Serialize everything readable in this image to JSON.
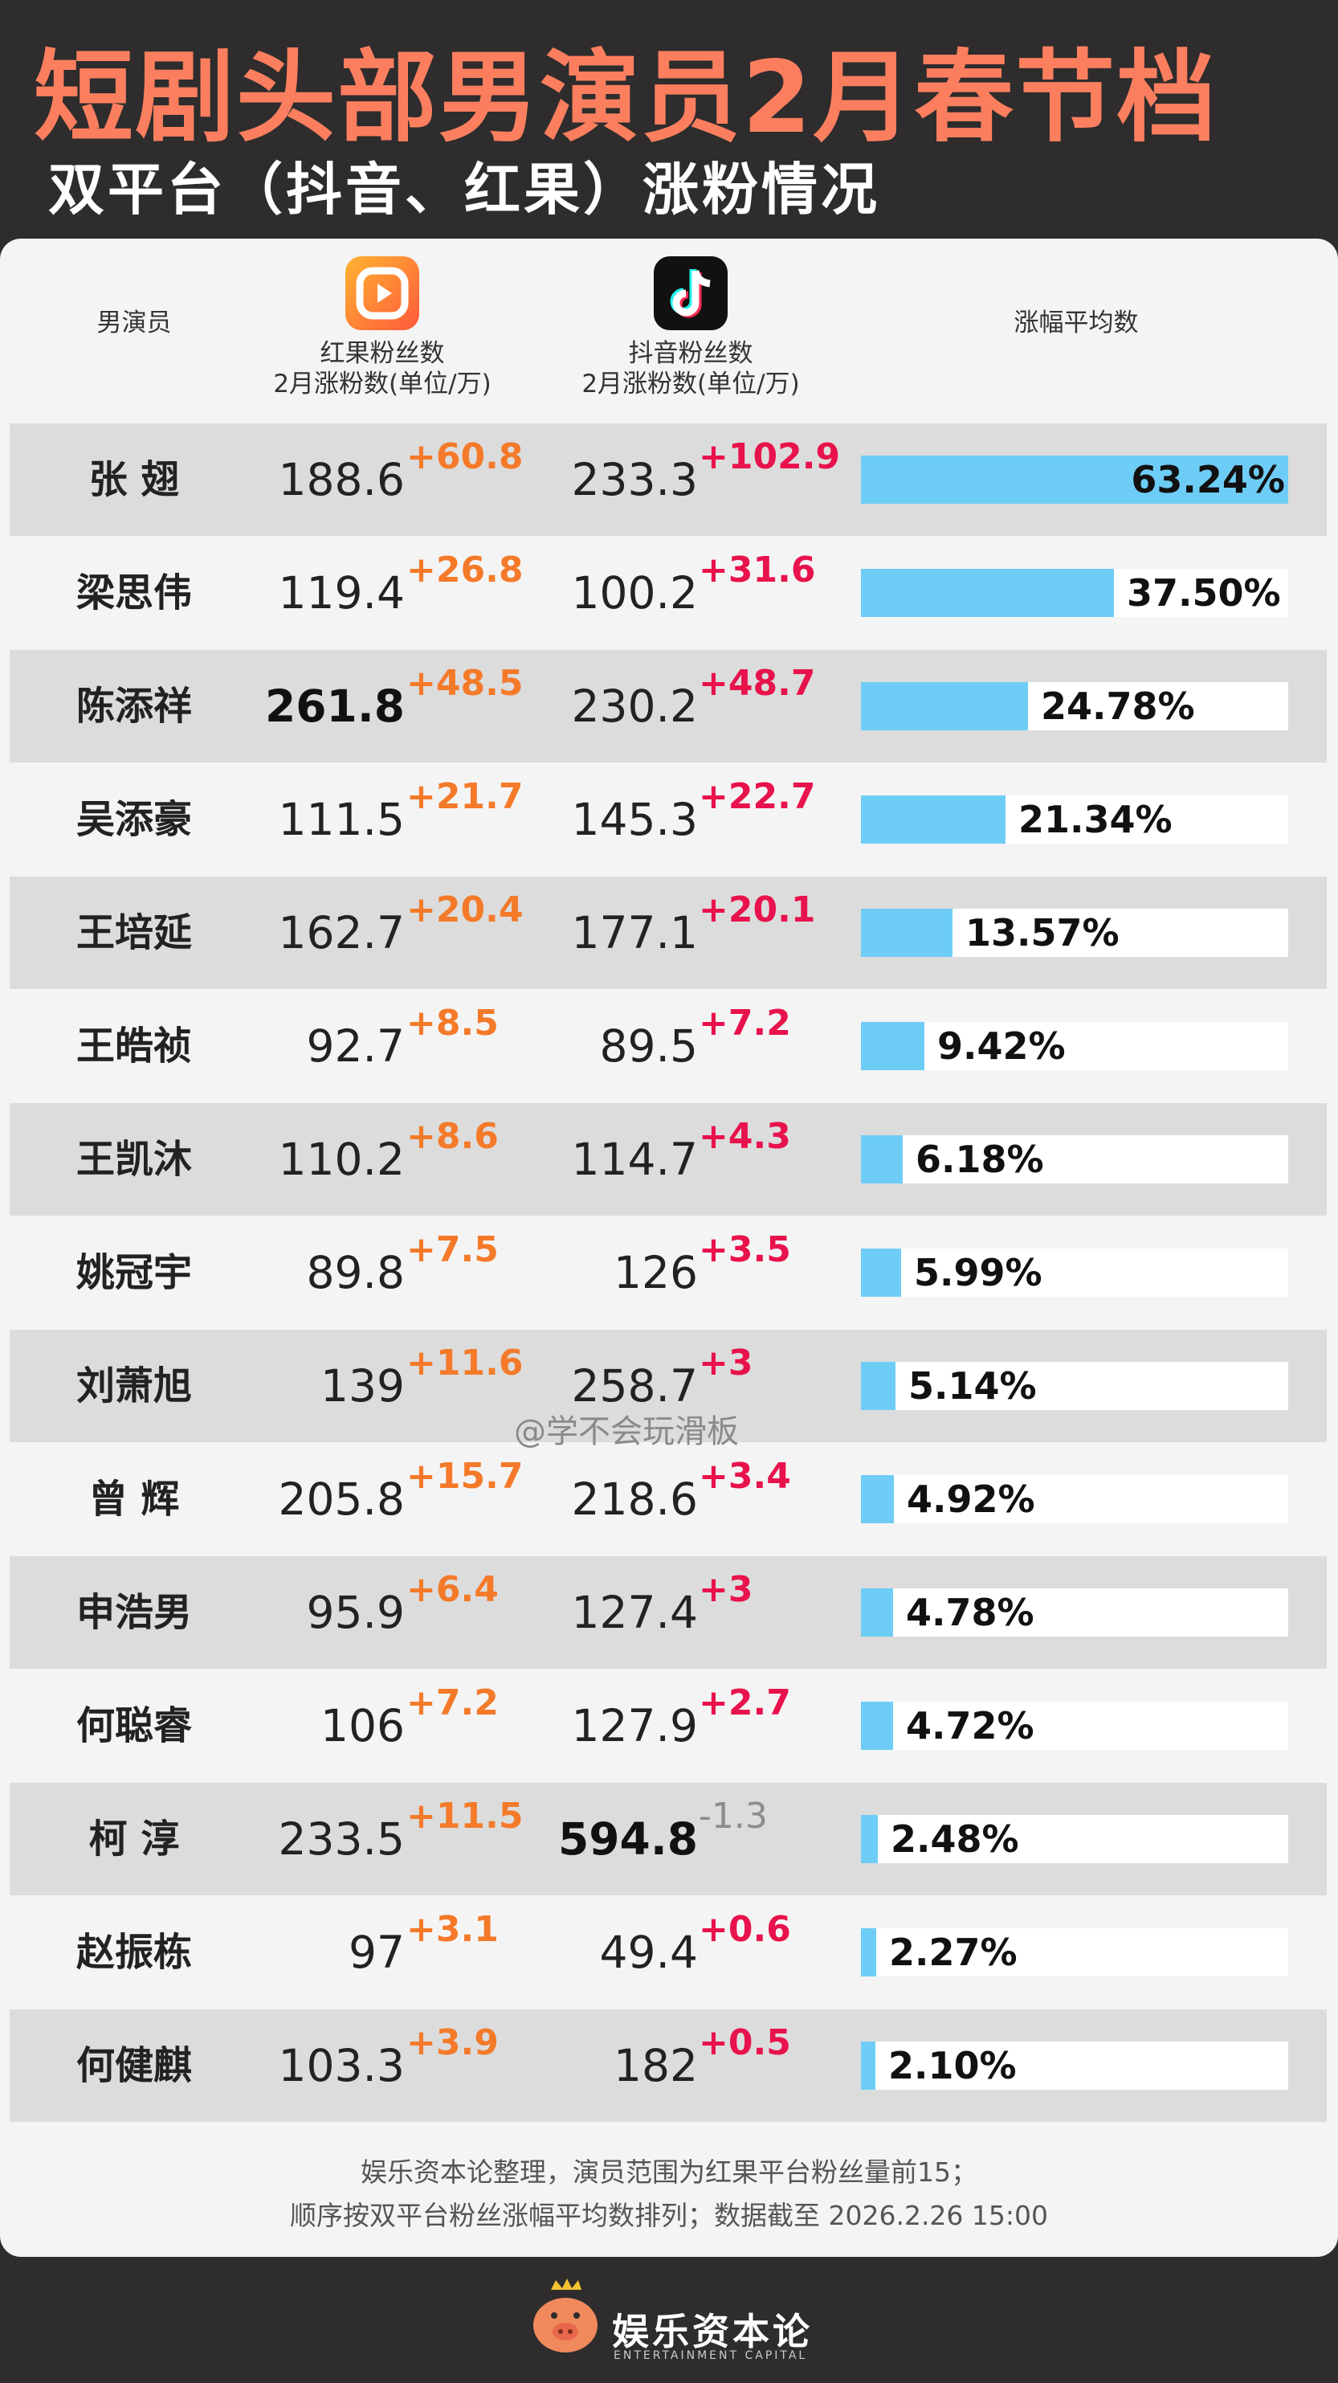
{
  "header": {
    "title": "短剧头部男演员2月春节档",
    "subtitle": "双平台（抖音、红果）涨粉情况"
  },
  "columns": {
    "actor": "男演员",
    "hongguo_line1": "红果粉丝数",
    "hongguo_line2": "2月涨粉数(单位/万)",
    "douyin_line1": "抖音粉丝数",
    "douyin_line2": "2月涨粉数(单位/万)",
    "avg": "涨幅平均数"
  },
  "icons": {
    "hongguo": "hongguo-app-icon",
    "douyin": "douyin-app-icon"
  },
  "colors": {
    "title": "#fb7f5f",
    "hongguo_delta": "#f47a2a",
    "douyin_delta": "#e8124c",
    "negative_delta": "#8c8c8c",
    "bar": "#6ecdf6"
  },
  "chart_data": {
    "type": "table",
    "rows": [
      {
        "name": "张 翅",
        "hongguo": "188.6",
        "hongguo_delta": "+60.8",
        "douyin": "233.3",
        "douyin_delta": "+102.9",
        "avg_pct": 63.24,
        "avg_label": "63.24%"
      },
      {
        "name": "梁思伟",
        "hongguo": "119.4",
        "hongguo_delta": "+26.8",
        "douyin": "100.2",
        "douyin_delta": "+31.6",
        "avg_pct": 37.5,
        "avg_label": "37.50%"
      },
      {
        "name": "陈添祥",
        "hongguo": "261.8",
        "hongguo_delta": "+48.5",
        "douyin": "230.2",
        "douyin_delta": "+48.7",
        "avg_pct": 24.78,
        "avg_label": "24.78%",
        "hongguo_bold": true
      },
      {
        "name": "吴添豪",
        "hongguo": "111.5",
        "hongguo_delta": "+21.7",
        "douyin": "145.3",
        "douyin_delta": "+22.7",
        "avg_pct": 21.34,
        "avg_label": "21.34%"
      },
      {
        "name": "王培延",
        "hongguo": "162.7",
        "hongguo_delta": "+20.4",
        "douyin": "177.1",
        "douyin_delta": "+20.1",
        "avg_pct": 13.57,
        "avg_label": "13.57%"
      },
      {
        "name": "王皓祯",
        "hongguo": "92.7",
        "hongguo_delta": "+8.5",
        "douyin": "89.5",
        "douyin_delta": "+7.2",
        "avg_pct": 9.42,
        "avg_label": "9.42%"
      },
      {
        "name": "王凯沐",
        "hongguo": "110.2",
        "hongguo_delta": "+8.6",
        "douyin": "114.7",
        "douyin_delta": "+4.3",
        "avg_pct": 6.18,
        "avg_label": "6.18%"
      },
      {
        "name": "姚冠宇",
        "hongguo": "89.8",
        "hongguo_delta": "+7.5",
        "douyin": "126",
        "douyin_delta": "+3.5",
        "avg_pct": 5.99,
        "avg_label": "5.99%"
      },
      {
        "name": "刘萧旭",
        "hongguo": "139",
        "hongguo_delta": "+11.6",
        "douyin": "258.7",
        "douyin_delta": "+3",
        "avg_pct": 5.14,
        "avg_label": "5.14%"
      },
      {
        "name": "曾 辉",
        "hongguo": "205.8",
        "hongguo_delta": "+15.7",
        "douyin": "218.6",
        "douyin_delta": "+3.4",
        "avg_pct": 4.92,
        "avg_label": "4.92%"
      },
      {
        "name": "申浩男",
        "hongguo": "95.9",
        "hongguo_delta": "+6.4",
        "douyin": "127.4",
        "douyin_delta": "+3",
        "avg_pct": 4.78,
        "avg_label": "4.78%"
      },
      {
        "name": "何聪睿",
        "hongguo": "106",
        "hongguo_delta": "+7.2",
        "douyin": "127.9",
        "douyin_delta": "+2.7",
        "avg_pct": 4.72,
        "avg_label": "4.72%"
      },
      {
        "name": "柯 淳",
        "hongguo": "233.5",
        "hongguo_delta": "+11.5",
        "douyin": "594.8",
        "douyin_delta": "-1.3",
        "avg_pct": 2.48,
        "avg_label": "2.48%",
        "douyin_bold": true
      },
      {
        "name": "赵振栋",
        "hongguo": "97",
        "hongguo_delta": "+3.1",
        "douyin": "49.4",
        "douyin_delta": "+0.6",
        "avg_pct": 2.27,
        "avg_label": "2.27%"
      },
      {
        "name": "何健麒",
        "hongguo": "103.3",
        "hongguo_delta": "+3.9",
        "douyin": "182",
        "douyin_delta": "+0.5",
        "avg_pct": 2.1,
        "avg_label": "2.10%"
      }
    ],
    "bar_max_pct": 63.24
  },
  "watermark": "@学不会玩滑板",
  "footer": {
    "line1": "娱乐资本论整理，演员范围为红果平台粉丝量前15；",
    "line2": "顺序按双平台粉丝涨幅平均数排列；数据截至 2026.2.26 15:00",
    "logo_text": "娱乐资本论",
    "logo_sub": "ENTERTAINMENT CAPITAL"
  }
}
